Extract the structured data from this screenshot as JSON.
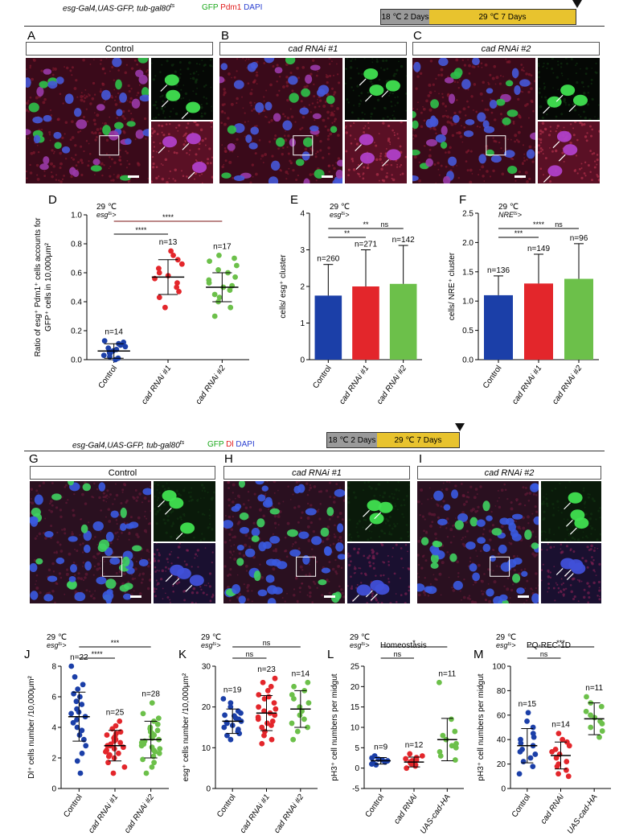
{
  "figure": {
    "top": {
      "genotype": "esg-Gal4,UAS-GFP, tub-gal80",
      "genotype_sup": "ts",
      "stain": [
        "GFP",
        "Pdm1",
        "DAPI"
      ],
      "timeline": [
        "18 ℃ 2 Days",
        "29 ℃ 7 Days"
      ],
      "panels": [
        {
          "letter": "A",
          "title": "Control"
        },
        {
          "letter": "B",
          "title": "cad   RNAi #1"
        },
        {
          "letter": "C",
          "title": "cad   RNAi #2"
        }
      ]
    },
    "bottom": {
      "genotype": "esg-Gal4,UAS-GFP, tub-gal80",
      "genotype_sup": "ts",
      "stain": [
        "GFP",
        "Dl",
        "DAPI"
      ],
      "timeline": [
        "18 ℃ 2 Days",
        "29 ℃ 7 Days"
      ],
      "panels": [
        {
          "letter": "G",
          "title": "Control"
        },
        {
          "letter": "H",
          "title": "cad   RNAi  #1"
        },
        {
          "letter": "I",
          "title": "cad   RNAi #2"
        }
      ]
    },
    "colors": {
      "control": "#1b3fa8",
      "rnai1": "#e3262b",
      "rnai2": "#6cc04a",
      "gfp": "#1aa81a",
      "pdm1": "#e01a1a",
      "dapi": "#2a3fd0"
    }
  },
  "chart_data": [
    {
      "panel": "D",
      "type": "scatter",
      "condition": "29 ℃",
      "driver": "esg",
      "driver_sup": "ts",
      "ylabel": [
        "Ratio of esg⁺ Pdm1⁺ cells accounts for",
        "GFP⁺ cells in 10,000μm²"
      ],
      "ylim": [
        0,
        1.0
      ],
      "yticks": [
        0.0,
        0.2,
        0.4,
        0.6,
        0.8,
        1.0
      ],
      "categories": [
        "Control",
        "cad RNAi #1",
        "cad RNAi #2"
      ],
      "n_labels": [
        "n=14",
        "n=13",
        "n=17"
      ],
      "means": [
        0.06,
        0.57,
        0.5
      ],
      "sd": [
        0.05,
        0.12,
        0.1
      ],
      "points": [
        [
          0.0,
          0.01,
          0.02,
          0.03,
          0.04,
          0.05,
          0.06,
          0.07,
          0.08,
          0.09,
          0.1,
          0.11,
          0.12,
          0.13
        ],
        [
          0.36,
          0.43,
          0.47,
          0.5,
          0.53,
          0.56,
          0.58,
          0.6,
          0.63,
          0.66,
          0.69,
          0.72,
          0.75
        ],
        [
          0.3,
          0.36,
          0.4,
          0.43,
          0.45,
          0.48,
          0.5,
          0.51,
          0.53,
          0.55,
          0.57,
          0.6,
          0.62,
          0.65,
          0.68,
          0.7,
          0.72
        ]
      ],
      "significance": [
        {
          "pair": [
            0,
            1
          ],
          "label": "****"
        },
        {
          "pair": [
            0,
            2
          ],
          "label": "****"
        }
      ]
    },
    {
      "panel": "E",
      "type": "bar",
      "condition": "29 ℃",
      "driver": "esg",
      "driver_sup": "ts",
      "ylabel": [
        "cells/ esg⁺ cluster"
      ],
      "ylim": [
        0,
        4
      ],
      "yticks": [
        0,
        1,
        2,
        3,
        4
      ],
      "categories": [
        "Control",
        "cad RNAi #1",
        "cad RNAi #2"
      ],
      "n_labels": [
        "n=260",
        "n=271",
        "n=142"
      ],
      "values": [
        1.75,
        2.0,
        2.07
      ],
      "err": [
        0.85,
        1.0,
        1.05
      ],
      "significance": [
        {
          "pair": [
            0,
            1
          ],
          "label": "**"
        },
        {
          "pair": [
            0,
            2
          ],
          "label": "**"
        },
        {
          "pair": [
            1,
            2
          ],
          "label": "ns"
        }
      ]
    },
    {
      "panel": "F",
      "type": "bar",
      "condition": "29 ℃",
      "driver": "NRE",
      "driver_sup": "ts",
      "ylabel": [
        "cells/ NRE⁺ cluster"
      ],
      "ylim": [
        0,
        2.5
      ],
      "yticks": [
        0.0,
        0.5,
        1.0,
        1.5,
        2.0,
        2.5
      ],
      "categories": [
        "Control",
        "cad RNAi #1",
        "cad RNAi #2"
      ],
      "n_labels": [
        "n=136",
        "n=149",
        "n=96"
      ],
      "values": [
        1.1,
        1.3,
        1.38
      ],
      "err": [
        0.33,
        0.5,
        0.6
      ],
      "significance": [
        {
          "pair": [
            0,
            1
          ],
          "label": "***"
        },
        {
          "pair": [
            0,
            2
          ],
          "label": "****"
        },
        {
          "pair": [
            1,
            2
          ],
          "label": "ns"
        }
      ]
    },
    {
      "panel": "J",
      "type": "scatter",
      "condition": "29 ℃",
      "driver": "esg",
      "driver_sup": "ts",
      "ylabel": [
        "Dl⁺ cells number /10,000μm²"
      ],
      "ylim": [
        0,
        8
      ],
      "yticks": [
        0,
        2,
        4,
        6,
        8
      ],
      "categories": [
        "Control",
        "cad RNAi #1",
        "cad RNAi #2"
      ],
      "n_labels": [
        "n=22",
        "n=25",
        "n=28"
      ],
      "means": [
        4.7,
        2.8,
        3.2
      ],
      "sd": [
        1.6,
        1.0,
        1.2
      ],
      "points": [
        [
          1.0,
          1.8,
          2.3,
          2.8,
          3.2,
          3.5,
          3.8,
          4.0,
          4.3,
          4.5,
          4.7,
          4.9,
          5.0,
          5.2,
          5.5,
          5.7,
          6.0,
          6.2,
          6.5,
          6.8,
          7.3,
          8.0
        ],
        [
          1.0,
          1.4,
          1.7,
          2.0,
          2.1,
          2.2,
          2.3,
          2.4,
          2.5,
          2.6,
          2.7,
          2.8,
          2.8,
          2.9,
          3.0,
          3.1,
          3.2,
          3.3,
          3.4,
          3.5,
          3.6,
          3.7,
          3.9,
          4.1,
          4.4
        ],
        [
          1.0,
          1.4,
          1.7,
          1.9,
          2.1,
          2.3,
          2.4,
          2.5,
          2.6,
          2.7,
          2.8,
          2.9,
          3.0,
          3.1,
          3.2,
          3.3,
          3.4,
          3.5,
          3.6,
          3.7,
          3.8,
          3.9,
          4.0,
          4.2,
          4.4,
          4.6,
          4.9,
          5.6
        ]
      ],
      "significance": [
        {
          "pair": [
            0,
            1
          ],
          "label": "****"
        },
        {
          "pair": [
            0,
            2
          ],
          "label": "***"
        }
      ]
    },
    {
      "panel": "K",
      "type": "scatter",
      "condition": "29 ℃",
      "driver": "esg",
      "driver_sup": "ts",
      "ylabel": [
        "esg⁺ cells number /10,000μm²"
      ],
      "ylim": [
        0,
        30
      ],
      "yticks": [
        0,
        10,
        20,
        30
      ],
      "categories": [
        "Control",
        "cad RNAi #1",
        "cad RNAi #2"
      ],
      "n_labels": [
        "n=19",
        "n=23",
        "n=14"
      ],
      "means": [
        16.5,
        18.5,
        19.5
      ],
      "sd": [
        3.0,
        4.3,
        4.5
      ],
      "points": [
        [
          12,
          13,
          13.5,
          14,
          14.5,
          15,
          15.5,
          16,
          16.2,
          16.5,
          17,
          17.3,
          17.8,
          18,
          18.5,
          19,
          20,
          21,
          22
        ],
        [
          11,
          12,
          13,
          14,
          15,
          15.5,
          16,
          16.5,
          17,
          17.5,
          18,
          18.5,
          19,
          19.5,
          20,
          21,
          22,
          22.5,
          23,
          24,
          25,
          26,
          27
        ],
        [
          12,
          14,
          15,
          16,
          17,
          18,
          19,
          20,
          21,
          22,
          23,
          24,
          25,
          26
        ]
      ],
      "significance": [
        {
          "pair": [
            0,
            1
          ],
          "label": "ns"
        },
        {
          "pair": [
            0,
            2
          ],
          "label": "ns"
        }
      ]
    },
    {
      "panel": "L",
      "type": "scatter",
      "condition": "29 ℃",
      "driver": "esg",
      "driver_sup": "ts",
      "subtitle": "Homeostasis",
      "ylabel": [
        "pH3⁺ cell numbers per midgut"
      ],
      "ylim": [
        -5,
        25
      ],
      "yticks": [
        -5,
        0,
        5,
        10,
        15,
        20,
        25
      ],
      "categories": [
        "Control",
        "cad RNAi",
        "UAS-cad-HA"
      ],
      "n_labels": [
        "n=9",
        "n=12",
        "n=11"
      ],
      "means": [
        1.8,
        1.5,
        7.0
      ],
      "sd": [
        0.8,
        1.2,
        5.2
      ],
      "points": [
        [
          0.8,
          1.0,
          1.3,
          1.5,
          1.8,
          2.0,
          2.2,
          2.5,
          3.0
        ],
        [
          0,
          0.5,
          0.8,
          1.0,
          1.2,
          1.5,
          1.8,
          2.0,
          2.3,
          2.6,
          3.0,
          3.5
        ],
        [
          2,
          3,
          4,
          5,
          5.5,
          6,
          7,
          8,
          9,
          12,
          21
        ]
      ],
      "significance": [
        {
          "pair": [
            0,
            1
          ],
          "label": "ns"
        },
        {
          "pair": [
            0,
            2
          ],
          "label": "*"
        }
      ]
    },
    {
      "panel": "M",
      "type": "scatter",
      "condition": "29 ℃",
      "driver": "esg",
      "driver_sup": "ts",
      "subtitle": "PQ-REC-1D",
      "ylabel": [
        "pH3⁺ cell numbers per midgut"
      ],
      "ylim": [
        0,
        100
      ],
      "yticks": [
        0,
        20,
        40,
        60,
        80,
        100
      ],
      "categories": [
        "Control",
        "cad RNAi",
        "UAS-cad-HA"
      ],
      "n_labels": [
        "n=15",
        "n=14",
        "n=11"
      ],
      "means": [
        35,
        27,
        57
      ],
      "sd": [
        14,
        11,
        13
      ],
      "points": [
        [
          12,
          18,
          22,
          25,
          28,
          30,
          32,
          35,
          37,
          40,
          42,
          45,
          50,
          55,
          62
        ],
        [
          10,
          12,
          15,
          18,
          20,
          22,
          25,
          28,
          30,
          32,
          35,
          38,
          40,
          45
        ],
        [
          42,
          47,
          50,
          53,
          55,
          58,
          60,
          63,
          67,
          70,
          75
        ]
      ],
      "significance": [
        {
          "pair": [
            0,
            1
          ],
          "label": "ns"
        },
        {
          "pair": [
            0,
            2
          ],
          "label": "***"
        }
      ]
    }
  ]
}
